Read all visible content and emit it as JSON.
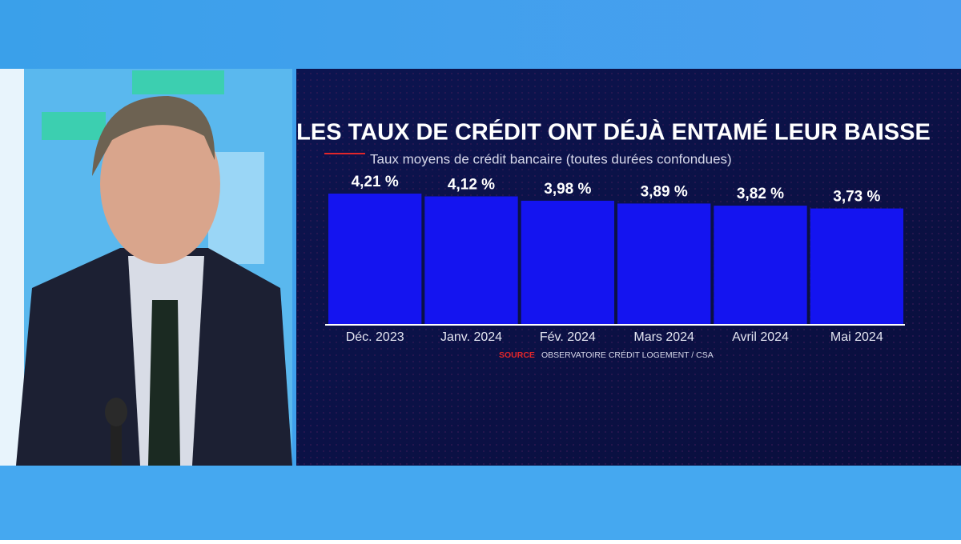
{
  "chart_data": {
    "type": "bar",
    "title": "LES TAUX DE CRÉDIT ONT DÉJÀ ENTAMÉ LEUR BAISSE",
    "subtitle": "Taux moyens de crédit bancaire (toutes durées confondues)",
    "categories": [
      "Déc. 2023",
      "Janv. 2024",
      "Fév. 2024",
      "Mars 2024",
      "Avril 2024",
      "Mai 2024"
    ],
    "values": [
      4.21,
      4.12,
      3.98,
      3.89,
      3.82,
      3.73
    ],
    "value_labels": [
      "4,21 %",
      "4,12 %",
      "3,98 %",
      "3,89 %",
      "3,82 %",
      "3,73 %"
    ],
    "color": "#1414f0",
    "source_label": "SOURCE",
    "source": "OBSERVATOIRE CRÉDIT LOGEMENT / CSA"
  }
}
